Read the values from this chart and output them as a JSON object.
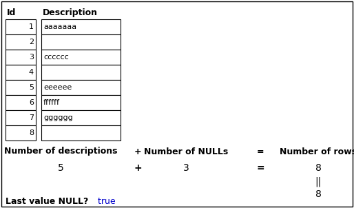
{
  "ids": [
    1,
    2,
    3,
    4,
    5,
    6,
    7,
    8
  ],
  "descriptions": [
    "aaaaaaa",
    "",
    "cccccc",
    "",
    "eeeeee",
    "ffffff",
    "gggggg",
    ""
  ],
  "header_id": "Id",
  "header_desc": "Description",
  "bg_color": "#ffffff",
  "border_color": "#000000",
  "text_color": "#000000",
  "true_color": "#0000cc",
  "label1": "Number of descriptions",
  "label2": "+",
  "label3": "Number of NULLs",
  "label4": "=",
  "label5": "Number of rows",
  "val1": "5",
  "val2": "+",
  "val3": "3",
  "val4": "=",
  "val5": "8",
  "val5b": "||",
  "val5c": "8",
  "last_null_label": "Last value NULL?",
  "last_null_value": " true"
}
